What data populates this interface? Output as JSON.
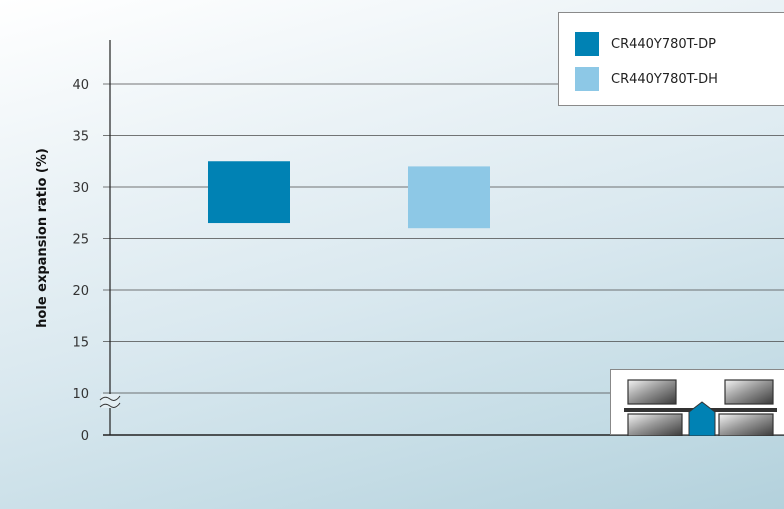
{
  "chart_data": {
    "type": "bar",
    "ylabel": "hole expansion ratio (%)",
    "ylim": [
      0,
      40
    ],
    "y_axis_break": true,
    "y_ticks": [
      0,
      10,
      15,
      20,
      25,
      30,
      35,
      40
    ],
    "grid": true,
    "legend_position": "top-right",
    "series": [
      {
        "name": "CR440Y780T-DP",
        "color": "#0082b4",
        "low": 26.5,
        "high": 32.5
      },
      {
        "name": "CR440Y780T-DH",
        "color": "#8dc8e6",
        "low": 26.0,
        "high": 32.0
      }
    ]
  },
  "legend": {
    "items": [
      {
        "label": "CR440Y780T-DP",
        "color": "#0082b4"
      },
      {
        "label": "CR440Y780T-DH",
        "color": "#8dc8e6"
      }
    ]
  }
}
